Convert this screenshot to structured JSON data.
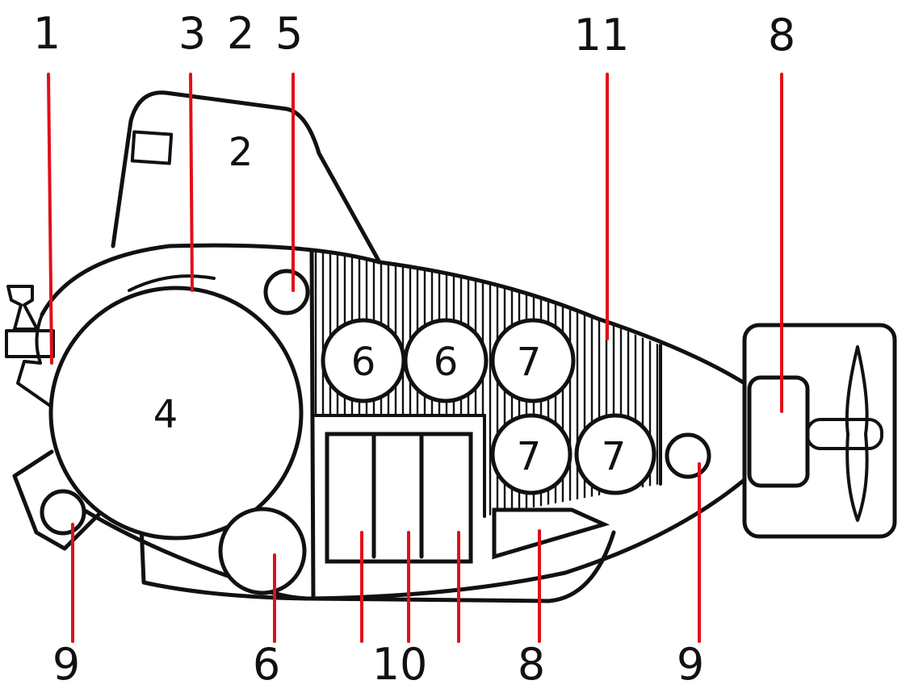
{
  "colors": {
    "line": "#111111",
    "leader": "#e0101a",
    "background": "#ffffff"
  },
  "labels": {
    "top": [
      "1",
      "3",
      "2",
      "5",
      "11",
      "8"
    ],
    "bottom": [
      "9",
      "6",
      "10",
      "8",
      "9"
    ],
    "inner": {
      "hull": "2",
      "sphere": "4",
      "tank_a": "6",
      "tank_b": "6",
      "tank_c": "7",
      "tank_d": "7",
      "tank_e": "7"
    }
  }
}
